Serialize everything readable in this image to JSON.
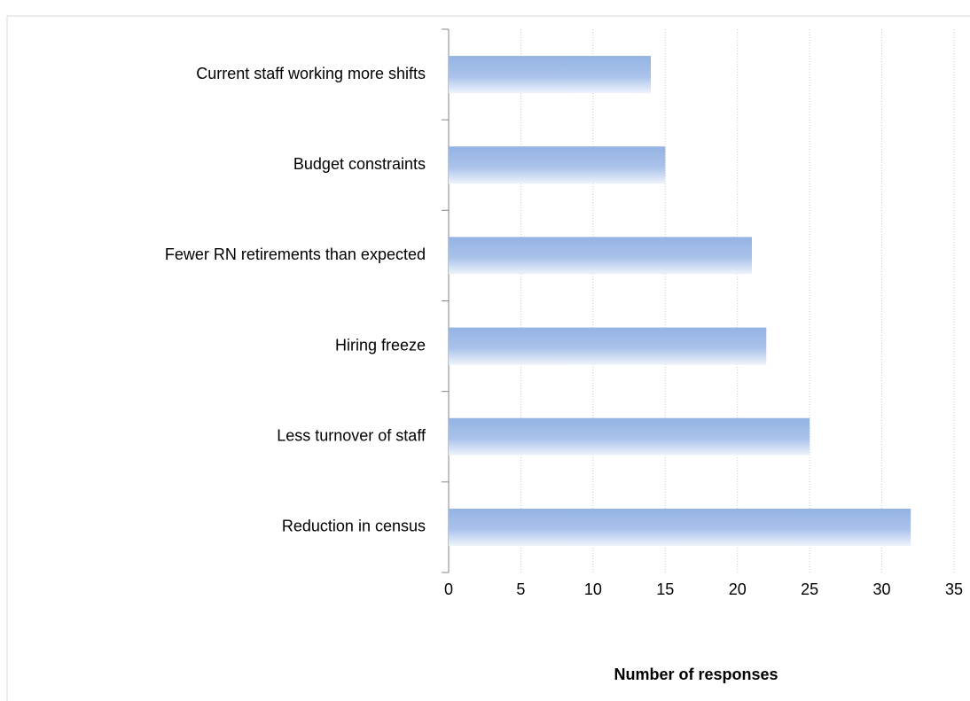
{
  "chart_data": {
    "type": "bar",
    "orientation": "horizontal",
    "categories": [
      "Current staff working more shifts",
      "Budget constraints",
      "Fewer RN retirements than expected",
      "Hiring freeze",
      "Less turnover of staff",
      "Reduction in census"
    ],
    "values": [
      14,
      15,
      21,
      22,
      25,
      32
    ],
    "color": "#94b3e3",
    "xlabel": "Number of responses",
    "xlim": [
      0,
      35
    ],
    "xticks": [
      0,
      5,
      10,
      15,
      20,
      25,
      30,
      35
    ],
    "grid": true
  }
}
